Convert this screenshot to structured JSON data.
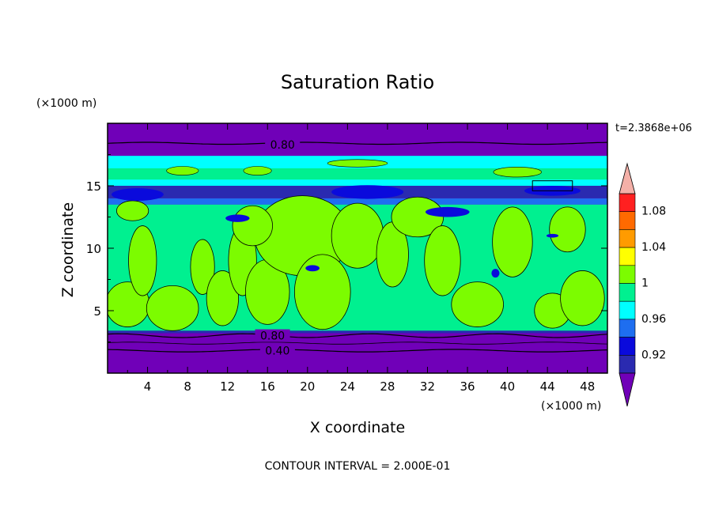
{
  "chart_data": {
    "type": "heatmap",
    "title": "Saturation Ratio",
    "xlabel": "X coordinate",
    "ylabel": "Z coordinate",
    "x_unit": "(×1000 m)",
    "y_unit": "(×1000 m)",
    "time_label": "t=2.3868e+06",
    "footer": "CONTOUR INTERVAL = 2.000E-01",
    "xlim": [
      0,
      50
    ],
    "ylim": [
      0,
      20
    ],
    "x_ticks": [
      "4",
      "8",
      "12",
      "16",
      "20",
      "24",
      "28",
      "32",
      "36",
      "40",
      "44",
      "48"
    ],
    "x_tick_values": [
      4,
      8,
      12,
      16,
      20,
      24,
      28,
      32,
      36,
      40,
      44,
      48
    ],
    "y_ticks": [
      "5",
      "10",
      "15"
    ],
    "y_tick_values": [
      5,
      10,
      15
    ],
    "colorbar": {
      "levels": [
        0.92,
        0.94,
        0.96,
        0.98,
        1.0,
        1.02,
        1.04,
        1.06,
        1.08,
        1.1
      ],
      "labels": [
        "0.92",
        "0.96",
        "1",
        "1.04",
        "1.08"
      ],
      "label_values": [
        0.92,
        0.96,
        1.0,
        1.04,
        1.08
      ],
      "colors": [
        "#7000b8",
        "#2a2ab0",
        "#0a0adc",
        "#1e6ef0",
        "#00ffff",
        "#00f090",
        "#7cfc00",
        "#ffff00",
        "#ff9b00",
        "#ff6a00",
        "#ff2020",
        "#f4b0a8"
      ]
    },
    "contour_labels": [
      {
        "text": "0.80",
        "x": 17.5,
        "y": 18.3
      },
      {
        "text": "0.80",
        "x": 16.5,
        "y": 3.0
      },
      {
        "text": "0.40",
        "x": 17.0,
        "y": 1.8
      }
    ]
  }
}
